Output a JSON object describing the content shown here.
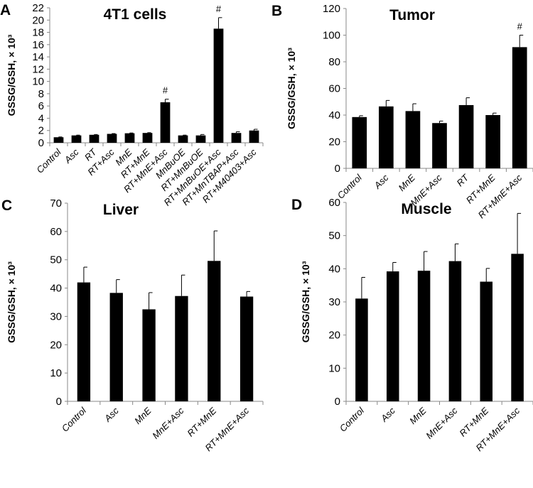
{
  "chart_data": [
    {
      "type": "bar",
      "panel": "A",
      "title": "4T1 cells",
      "ylabel": "GSSG/GSH, × 10³",
      "ylim": [
        0,
        22
      ],
      "yticks": [
        0,
        2,
        4,
        6,
        8,
        10,
        12,
        14,
        16,
        18,
        20,
        22
      ],
      "categories": [
        "Control",
        "Asc",
        "RT",
        "RT+Asc",
        "MnE",
        "RT+MnE",
        "RT+MnE+Asc",
        "MnBuOE",
        "RT+MnBuOE",
        "RT+MnBuOE+Asc",
        "RT+MnTBAP+Asc",
        "RT+M40403+Asc"
      ],
      "values": [
        0.9,
        1.2,
        1.3,
        1.45,
        1.55,
        1.6,
        6.6,
        1.2,
        1.2,
        18.6,
        1.6,
        2.0
      ],
      "errors": [
        0.05,
        0.05,
        0.05,
        0.05,
        0.05,
        0.05,
        0.5,
        0.05,
        0.15,
        1.8,
        0.2,
        0.2
      ],
      "annotations": [
        "",
        "",
        "",
        "",
        "",
        "",
        "#",
        "",
        "",
        "#",
        "",
        ""
      ]
    },
    {
      "type": "bar",
      "panel": "B",
      "title": "Tumor",
      "ylabel": "GSSG/GSH, × 10³",
      "ylim": [
        0,
        120
      ],
      "yticks": [
        0,
        20,
        40,
        60,
        80,
        100,
        120
      ],
      "categories": [
        "Control",
        "Asc",
        "MnE",
        "MnE+Asc",
        "RT",
        "RT+MnE",
        "RT+MnE+Asc"
      ],
      "values": [
        38.5,
        46.5,
        43,
        34,
        47.5,
        40,
        91
      ],
      "errors": [
        1,
        4.5,
        5.5,
        1.5,
        5.5,
        1.5,
        9
      ],
      "annotations": [
        "",
        "",
        "",
        "",
        "",
        "",
        "#"
      ]
    },
    {
      "type": "bar",
      "panel": "C",
      "title": "Liver",
      "ylabel": "GSSG/GSH, × 10³",
      "ylim": [
        0,
        70
      ],
      "yticks": [
        0,
        10,
        20,
        30,
        40,
        50,
        60,
        70
      ],
      "categories": [
        "Control",
        "Asc",
        "MnE",
        "MnE+Asc",
        "RT+MnE",
        "RT+MnE+Asc"
      ],
      "values": [
        42,
        38.3,
        32.5,
        37.2,
        49.6,
        37
      ],
      "errors": [
        5.4,
        4.7,
        5.9,
        7.4,
        10.6,
        1.8
      ],
      "annotations": [
        "",
        "",
        "",
        "",
        "",
        ""
      ]
    },
    {
      "type": "bar",
      "panel": "D",
      "title": "Muscle",
      "ylabel": "GSSG/GSH, × 10³",
      "ylim": [
        0,
        60
      ],
      "yticks": [
        0,
        10,
        20,
        30,
        40,
        50,
        60
      ],
      "categories": [
        "Control",
        "Asc",
        "MnE",
        "MnE+Asc",
        "RT+MnE",
        "RT+MnE+Asc"
      ],
      "values": [
        31,
        39.2,
        39.4,
        42.3,
        36.1,
        44.5
      ],
      "errors": [
        6.4,
        2.7,
        5.8,
        5.2,
        4,
        12.2
      ],
      "annotations": [
        "",
        "",
        "",
        "",
        "",
        ""
      ]
    }
  ]
}
